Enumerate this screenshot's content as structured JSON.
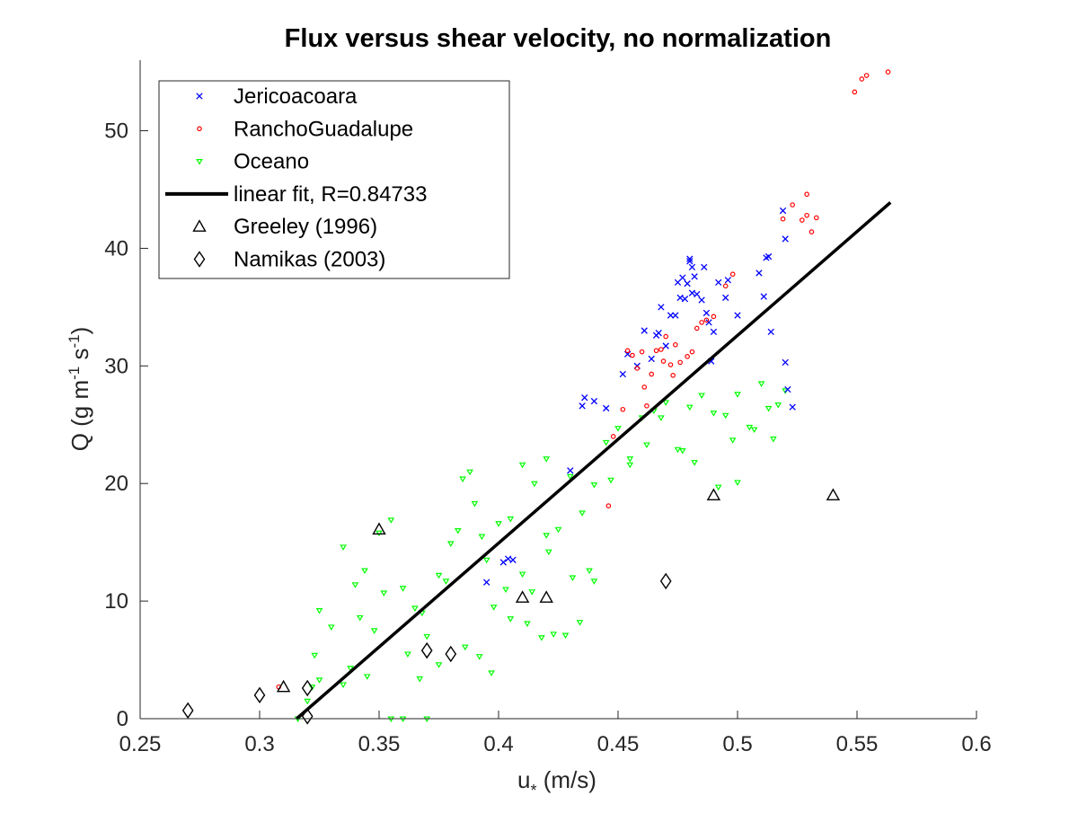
{
  "chart_data": {
    "type": "scatter",
    "title": "Flux versus shear velocity, no normalization",
    "xlabel": "u* (m/s)",
    "ylabel": "Q (g m-1 s-1)",
    "xlim": [
      0.25,
      0.6
    ],
    "ylim": [
      0,
      56
    ],
    "x_ticks": [
      0.25,
      0.3,
      0.35,
      0.4,
      0.45,
      0.5,
      0.55,
      0.6
    ],
    "x_tick_labels": [
      "0.25",
      "0.3",
      "0.35",
      "0.4",
      "0.45",
      "0.5",
      "0.55",
      "0.6"
    ],
    "y_ticks": [
      0,
      10,
      20,
      30,
      40,
      50
    ],
    "y_tick_labels": [
      "0",
      "10",
      "20",
      "30",
      "40",
      "50"
    ],
    "grid": false,
    "legend_position": "top-left",
    "series": [
      {
        "name": "Jericoacoara",
        "marker": "x",
        "color": "#0000ff",
        "points": [
          [
            0.395,
            11.6
          ],
          [
            0.402,
            13.3
          ],
          [
            0.404,
            13.6
          ],
          [
            0.406,
            13.5
          ],
          [
            0.43,
            21.1
          ],
          [
            0.435,
            26.6
          ],
          [
            0.436,
            27.3
          ],
          [
            0.44,
            27.0
          ],
          [
            0.445,
            26.4
          ],
          [
            0.452,
            29.3
          ],
          [
            0.454,
            31.0
          ],
          [
            0.458,
            30.0
          ],
          [
            0.461,
            33.0
          ],
          [
            0.464,
            30.6
          ],
          [
            0.466,
            32.6
          ],
          [
            0.467,
            32.8
          ],
          [
            0.468,
            35.0
          ],
          [
            0.47,
            31.7
          ],
          [
            0.472,
            34.3
          ],
          [
            0.474,
            34.3
          ],
          [
            0.475,
            37.1
          ],
          [
            0.476,
            35.8
          ],
          [
            0.477,
            37.5
          ],
          [
            0.478,
            35.7
          ],
          [
            0.479,
            37.0
          ],
          [
            0.48,
            38.9
          ],
          [
            0.48,
            39.1
          ],
          [
            0.481,
            38.4
          ],
          [
            0.481,
            36.2
          ],
          [
            0.482,
            37.6
          ],
          [
            0.483,
            36.1
          ],
          [
            0.485,
            35.6
          ],
          [
            0.486,
            38.4
          ],
          [
            0.487,
            34.5
          ],
          [
            0.488,
            33.7
          ],
          [
            0.489,
            30.4
          ],
          [
            0.49,
            32.9
          ],
          [
            0.492,
            37.1
          ],
          [
            0.495,
            35.8
          ],
          [
            0.496,
            37.3
          ],
          [
            0.5,
            34.3
          ],
          [
            0.509,
            37.9
          ],
          [
            0.511,
            35.9
          ],
          [
            0.512,
            39.2
          ],
          [
            0.513,
            39.3
          ],
          [
            0.514,
            32.9
          ],
          [
            0.519,
            43.2
          ],
          [
            0.52,
            40.8
          ],
          [
            0.52,
            30.3
          ],
          [
            0.521,
            28.0
          ],
          [
            0.523,
            26.5
          ]
        ]
      },
      {
        "name": "RanchoGuadalupe",
        "marker": "o",
        "color": "#ff0000",
        "points": [
          [
            0.308,
            2.7
          ],
          [
            0.446,
            18.1
          ],
          [
            0.448,
            24.0
          ],
          [
            0.452,
            26.3
          ],
          [
            0.454,
            31.3
          ],
          [
            0.456,
            30.9
          ],
          [
            0.458,
            29.8
          ],
          [
            0.46,
            31.2
          ],
          [
            0.461,
            28.2
          ],
          [
            0.462,
            26.6
          ],
          [
            0.464,
            29.3
          ],
          [
            0.466,
            31.3
          ],
          [
            0.468,
            31.4
          ],
          [
            0.469,
            30.4
          ],
          [
            0.47,
            32.5
          ],
          [
            0.472,
            30.1
          ],
          [
            0.473,
            29.2
          ],
          [
            0.474,
            31.8
          ],
          [
            0.476,
            30.3
          ],
          [
            0.479,
            30.8
          ],
          [
            0.481,
            31.2
          ],
          [
            0.483,
            33.2
          ],
          [
            0.485,
            33.7
          ],
          [
            0.487,
            33.9
          ],
          [
            0.49,
            34.2
          ],
          [
            0.495,
            36.8
          ],
          [
            0.498,
            37.8
          ],
          [
            0.519,
            42.5
          ],
          [
            0.523,
            43.7
          ],
          [
            0.527,
            42.4
          ],
          [
            0.529,
            42.8
          ],
          [
            0.531,
            41.4
          ],
          [
            0.533,
            42.6
          ],
          [
            0.549,
            53.3
          ],
          [
            0.552,
            54.4
          ],
          [
            0.554,
            54.7
          ],
          [
            0.563,
            55.0
          ],
          [
            0.529,
            44.6
          ]
        ]
      },
      {
        "name": "Oceano",
        "marker": "v",
        "color": "#00ff00",
        "points": [
          [
            0.316,
            0.0
          ],
          [
            0.32,
            1.5
          ],
          [
            0.322,
            2.7
          ],
          [
            0.323,
            5.4
          ],
          [
            0.325,
            9.2
          ],
          [
            0.33,
            7.8
          ],
          [
            0.335,
            14.6
          ],
          [
            0.34,
            11.4
          ],
          [
            0.345,
            3.6
          ],
          [
            0.35,
            15.8
          ],
          [
            0.355,
            16.9
          ],
          [
            0.355,
            0.0
          ],
          [
            0.36,
            11.1
          ],
          [
            0.365,
            9.4
          ],
          [
            0.37,
            7.0
          ],
          [
            0.375,
            12.2
          ],
          [
            0.38,
            14.9
          ],
          [
            0.385,
            20.4
          ],
          [
            0.39,
            18.3
          ],
          [
            0.395,
            13.5
          ],
          [
            0.4,
            16.6
          ],
          [
            0.405,
            17.0
          ],
          [
            0.405,
            8.5
          ],
          [
            0.41,
            21.6
          ],
          [
            0.41,
            12.3
          ],
          [
            0.415,
            20.0
          ],
          [
            0.42,
            22.1
          ],
          [
            0.42,
            15.6
          ],
          [
            0.425,
            16.1
          ],
          [
            0.43,
            20.6
          ],
          [
            0.435,
            17.5
          ],
          [
            0.44,
            19.9
          ],
          [
            0.44,
            11.7
          ],
          [
            0.445,
            23.5
          ],
          [
            0.45,
            24.7
          ],
          [
            0.455,
            22.1
          ],
          [
            0.46,
            25.6
          ],
          [
            0.465,
            26.2
          ],
          [
            0.47,
            26.9
          ],
          [
            0.475,
            22.9
          ],
          [
            0.48,
            26.5
          ],
          [
            0.485,
            27.5
          ],
          [
            0.49,
            26.0
          ],
          [
            0.495,
            25.8
          ],
          [
            0.5,
            27.6
          ],
          [
            0.5,
            20.1
          ],
          [
            0.505,
            24.8
          ],
          [
            0.51,
            28.5
          ],
          [
            0.515,
            23.8
          ],
          [
            0.52,
            27.9
          ],
          [
            0.335,
            2.9
          ],
          [
            0.338,
            4.3
          ],
          [
            0.342,
            8.6
          ],
          [
            0.348,
            7.5
          ],
          [
            0.362,
            5.5
          ],
          [
            0.367,
            3.4
          ],
          [
            0.375,
            4.6
          ],
          [
            0.386,
            6.1
          ],
          [
            0.392,
            5.3
          ],
          [
            0.397,
            3.9
          ],
          [
            0.412,
            8.1
          ],
          [
            0.418,
            6.9
          ],
          [
            0.423,
            7.2
          ],
          [
            0.428,
            7.1
          ],
          [
            0.434,
            8.2
          ],
          [
            0.36,
            0.0
          ],
          [
            0.37,
            0.0
          ],
          [
            0.325,
            3.3
          ],
          [
            0.344,
            12.6
          ],
          [
            0.352,
            10.7
          ],
          [
            0.368,
            9.0
          ],
          [
            0.378,
            11.7
          ],
          [
            0.388,
            21.0
          ],
          [
            0.398,
            9.5
          ],
          [
            0.403,
            11.0
          ],
          [
            0.414,
            10.8
          ],
          [
            0.421,
            14.2
          ],
          [
            0.431,
            12.0
          ],
          [
            0.438,
            12.6
          ],
          [
            0.447,
            20.3
          ],
          [
            0.455,
            21.6
          ],
          [
            0.462,
            23.3
          ],
          [
            0.468,
            25.6
          ],
          [
            0.477,
            22.8
          ],
          [
            0.482,
            21.8
          ],
          [
            0.492,
            19.7
          ],
          [
            0.498,
            23.7
          ],
          [
            0.507,
            24.6
          ],
          [
            0.513,
            26.4
          ],
          [
            0.517,
            26.7
          ],
          [
            0.383,
            16.0
          ],
          [
            0.393,
            15.5
          ]
        ]
      },
      {
        "name": "linear fit, R=0.84733",
        "marker": "line",
        "color": "#000000",
        "points": [
          [
            0.3155,
            0.0
          ],
          [
            0.564,
            43.9
          ]
        ]
      },
      {
        "name": "Greeley (1996)",
        "marker": "^",
        "color": "#000000",
        "points": [
          [
            0.31,
            2.7
          ],
          [
            0.35,
            16.1
          ],
          [
            0.41,
            10.3
          ],
          [
            0.42,
            10.3
          ],
          [
            0.49,
            19.0
          ],
          [
            0.54,
            19.0
          ]
        ]
      },
      {
        "name": "Namikas (2003)",
        "marker": "d",
        "color": "#000000",
        "points": [
          [
            0.27,
            0.7
          ],
          [
            0.3,
            2.0
          ],
          [
            0.32,
            2.6
          ],
          [
            0.32,
            0.2
          ],
          [
            0.37,
            5.8
          ],
          [
            0.38,
            5.5
          ],
          [
            0.47,
            11.7
          ]
        ]
      }
    ]
  }
}
